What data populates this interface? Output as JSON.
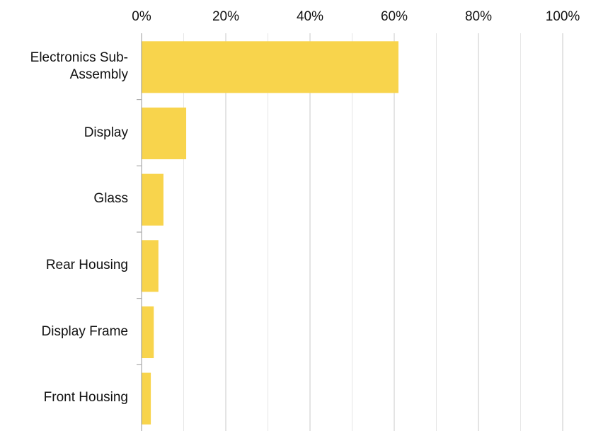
{
  "chart_data": {
    "type": "bar",
    "orientation": "horizontal",
    "categories": [
      "Electronics Sub-Assembly",
      "Display",
      "Glass",
      "Rear Housing",
      "Display Frame",
      "Front Housing"
    ],
    "values": [
      61,
      10.6,
      5.2,
      4,
      2.9,
      2.2
    ],
    "color": "#f8d44c",
    "xlim": [
      0,
      100
    ],
    "xticks": [
      {
        "value": 0,
        "label": "0%"
      },
      {
        "value": 20,
        "label": "20%"
      },
      {
        "value": 40,
        "label": "40%"
      },
      {
        "value": 60,
        "label": "60%"
      },
      {
        "value": 80,
        "label": "80%"
      },
      {
        "value": 100,
        "label": "100%"
      }
    ],
    "minor_xticks": [
      10,
      30,
      50,
      70,
      90
    ],
    "grid": true
  }
}
